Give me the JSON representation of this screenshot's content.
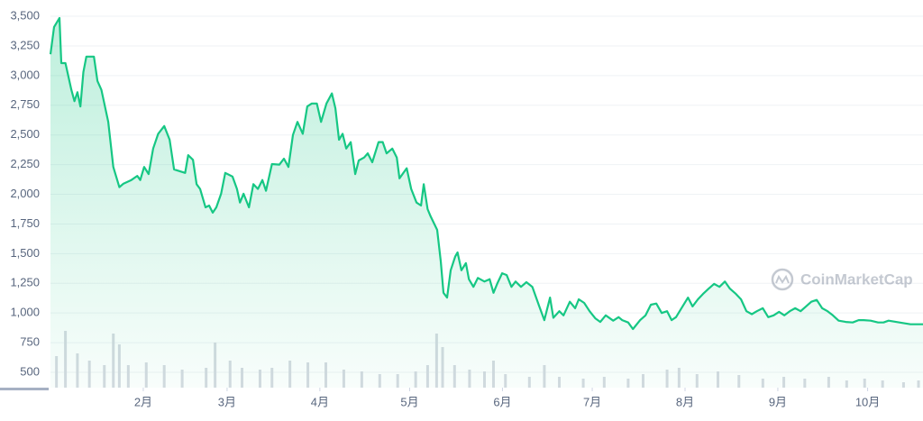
{
  "chart_data": {
    "type": "line",
    "watermark": "CoinMarketCap",
    "x": [
      0,
      1.2,
      3,
      3.6,
      5,
      7,
      8,
      9,
      10,
      11,
      12,
      14.5,
      15.7,
      17,
      19.3,
      21,
      23,
      24.4,
      27,
      29,
      30,
      31.3,
      32.8,
      34.3,
      36,
      38,
      39.8,
      41.3,
      45,
      46,
      47.6,
      48.8,
      50,
      51.8,
      53,
      54.2,
      55.4,
      57,
      58.4,
      60.8,
      62.3,
      63.3,
      64.5,
      66.3,
      67.8,
      69.3,
      70.8,
      72,
      74,
      76.5,
      78,
      79.5,
      81,
      82.5,
      84.3,
      85.8,
      87.3,
      89,
      90.4,
      92.2,
      94,
      95.2,
      96.4,
      97.6,
      98.8,
      100.3,
      101.8,
      103,
      104.8,
      106,
      107.5,
      109.6,
      111,
      112.3,
      114.2,
      115.7,
      116.6,
      119,
      120.5,
      122.3,
      123.8,
      124.7,
      126,
      127,
      129.2,
      130.4,
      131.3,
      132.5,
      133.7,
      135.2,
      136,
      137.3,
      138.8,
      139.8,
      141.3,
      142.8,
      145,
      146.7,
      148,
      149.4,
      150.9,
      152.4,
      154,
      155.4,
      157.2,
      159,
      161,
      163.3,
      165,
      166.9,
      168,
      170,
      171.4,
      173.5,
      175.3,
      176.5,
      178.3,
      180.1,
      182,
      183.7,
      185.5,
      188,
      189.8,
      191,
      193,
      194.6,
      197,
      198.8,
      200.6,
      202.4,
      204.2,
      206,
      207.5,
      209,
      210.8,
      213,
      214.5,
      216.3,
      218,
      219.9,
      221.7,
      223.5,
      225.3,
      227,
      229,
      230.7,
      232.5,
      234.3,
      236,
      238,
      239.8,
      241.6,
      243.4,
      245.2,
      247,
      248.8,
      250.6,
      252.4,
      254.2,
      256,
      257.8,
      259.6,
      261.4,
      263.3,
      265.7,
      268,
      270,
      271.7,
      274,
      276.5,
      278.3,
      280,
      282.5,
      285,
      287.3,
      291.5
    ],
    "series": [
      {
        "color": "#16c784",
        "values": [
          3180,
          3410,
          3485,
          3105,
          3105,
          2880,
          2785,
          2860,
          2740,
          3030,
          3160,
          3160,
          2955,
          2880,
          2610,
          2230,
          2060,
          2090,
          2120,
          2155,
          2120,
          2230,
          2170,
          2385,
          2510,
          2575,
          2460,
          2210,
          2180,
          2330,
          2290,
          2085,
          2045,
          1890,
          1905,
          1845,
          1890,
          2005,
          2180,
          2150,
          2045,
          1930,
          2005,
          1890,
          2085,
          2045,
          2120,
          2030,
          2255,
          2250,
          2300,
          2230,
          2500,
          2610,
          2510,
          2740,
          2765,
          2765,
          2610,
          2765,
          2850,
          2725,
          2460,
          2510,
          2385,
          2440,
          2170,
          2285,
          2310,
          2345,
          2270,
          2440,
          2440,
          2345,
          2385,
          2310,
          2135,
          2220,
          2045,
          1930,
          1905,
          2085,
          1875,
          1815,
          1700,
          1435,
          1170,
          1130,
          1360,
          1475,
          1510,
          1360,
          1420,
          1285,
          1220,
          1295,
          1265,
          1285,
          1170,
          1255,
          1335,
          1320,
          1220,
          1265,
          1220,
          1260,
          1220,
          1055,
          940,
          1130,
          960,
          1015,
          980,
          1095,
          1040,
          1115,
          1085,
          1015,
          955,
          925,
          980,
          935,
          965,
          940,
          920,
          865,
          940,
          980,
          1070,
          1080,
          1000,
          1015,
          940,
          965,
          1040,
          1130,
          1055,
          1115,
          1160,
          1205,
          1245,
          1220,
          1265,
          1205,
          1160,
          1115,
          1015,
          990,
          1015,
          1040,
          965,
          980,
          1010,
          980,
          1015,
          1040,
          1015,
          1055,
          1095,
          1110,
          1040,
          1015,
          980,
          935,
          925,
          920,
          940,
          940,
          935,
          920,
          920,
          935,
          925,
          915,
          905,
          905
        ]
      }
    ],
    "volume": {
      "color": "#d6dae1",
      "x": [
        2,
        5,
        9,
        13,
        18,
        21,
        23,
        26,
        32,
        38,
        44,
        52,
        55,
        60,
        64,
        70,
        74,
        80,
        86,
        92,
        98,
        104,
        110,
        116,
        122,
        126,
        129,
        131,
        135,
        140,
        145,
        148,
        152,
        160,
        165,
        170,
        178,
        185,
        193,
        198,
        206,
        210,
        216,
        223,
        230,
        238,
        245,
        252,
        260,
        266,
        272,
        278,
        285,
        290
      ],
      "values": [
        35,
        63,
        38,
        30,
        25,
        60,
        48,
        25,
        28,
        25,
        20,
        22,
        50,
        30,
        22,
        20,
        22,
        30,
        28,
        28,
        20,
        18,
        15,
        15,
        18,
        25,
        60,
        45,
        25,
        20,
        18,
        30,
        15,
        12,
        25,
        12,
        10,
        12,
        10,
        15,
        20,
        22,
        15,
        18,
        14,
        10,
        12,
        10,
        12,
        8,
        10,
        8,
        6,
        8
      ],
      "ylim": [
        0,
        100
      ]
    },
    "xlim": [
      0,
      291.5
    ],
    "xticks": [
      {
        "value": 31,
        "label": "2月"
      },
      {
        "value": 59,
        "label": "3月"
      },
      {
        "value": 90,
        "label": "4月"
      },
      {
        "value": 120,
        "label": "5月"
      },
      {
        "value": 151,
        "label": "6月"
      },
      {
        "value": 181,
        "label": "7月"
      },
      {
        "value": 212,
        "label": "8月"
      },
      {
        "value": 243,
        "label": "9月"
      },
      {
        "value": 273,
        "label": "10月"
      }
    ],
    "ylim": [
      371,
      3637
    ],
    "yticks": [
      {
        "value": 500,
        "label": "500"
      },
      {
        "value": 750,
        "label": "750"
      },
      {
        "value": 1000,
        "label": "1,000"
      },
      {
        "value": 1250,
        "label": "1,250"
      },
      {
        "value": 1500,
        "label": "1,500"
      },
      {
        "value": 1750,
        "label": "1,750"
      },
      {
        "value": 2000,
        "label": "2,000"
      },
      {
        "value": 2250,
        "label": "2,250"
      },
      {
        "value": 2500,
        "label": "2,500"
      },
      {
        "value": 2750,
        "label": "2,750"
      },
      {
        "value": 3000,
        "label": "3,000"
      },
      {
        "value": 3250,
        "label": "3,250"
      },
      {
        "value": 3500,
        "label": "3,500"
      }
    ],
    "grid": true
  }
}
